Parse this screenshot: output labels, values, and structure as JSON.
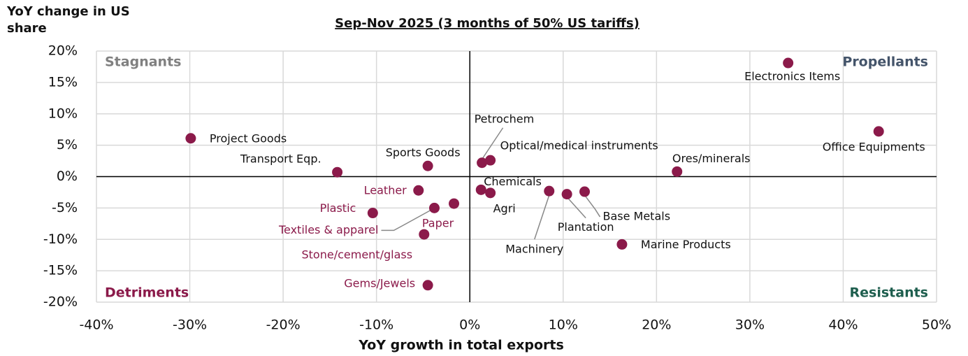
{
  "chart_data": {
    "type": "scatter",
    "title": "Sep-Nov 2025 (3 months of 50% US tariffs)",
    "x_label": "YoY growth in total exports",
    "y_label": "YoY change in US share",
    "color": "#8b1a4a",
    "labels": [
      "Electronics Items",
      "Office Equipments",
      "Project Goods",
      "Transport Eqp.",
      "Sports Goods",
      "Petrochem",
      "Optical/medical instruments",
      "Ores/minerals",
      "Leather",
      "Chemicals",
      "Agri",
      "Machinery",
      "Plantation",
      "Base Metals",
      "Plastic",
      "Textiles & apparel",
      "Paper",
      "Stone/cement/glass",
      "Marine Products",
      "Gems/Jewels"
    ],
    "x": [
      34.1,
      43.8,
      -29.9,
      -14.2,
      -4.5,
      1.3,
      2.2,
      22.2,
      -5.5,
      1.2,
      2.2,
      8.5,
      10.4,
      12.3,
      -10.4,
      -3.8,
      -1.7,
      -4.9,
      16.3,
      -4.5
    ],
    "values": [
      18.1,
      7.2,
      6.1,
      0.7,
      1.7,
      2.2,
      2.6,
      0.8,
      -2.2,
      -2.1,
      -2.6,
      -2.3,
      -2.8,
      -2.4,
      -5.8,
      -5.0,
      -4.3,
      -9.2,
      -10.8,
      -17.3
    ],
    "quadrants": [
      {
        "label": "Propellants",
        "color": "#44546a"
      },
      {
        "label": "Stagnants",
        "color": "#808080"
      },
      {
        "label": "Detriments",
        "color": "#8b1a4a"
      },
      {
        "label": "Resistants",
        "color": "#1e5e4e"
      }
    ],
    "xlim": [
      -40,
      50
    ],
    "ylim": [
      -20,
      20
    ],
    "xticks": [
      {
        "value": -40,
        "label": "-40%"
      },
      {
        "value": -30,
        "label": "-30%"
      },
      {
        "value": -20,
        "label": "-20%"
      },
      {
        "value": -10,
        "label": "-10%"
      },
      {
        "value": 0,
        "label": "0%"
      },
      {
        "value": 10,
        "label": "10%"
      },
      {
        "value": 20,
        "label": "20%"
      },
      {
        "value": 30,
        "label": "30%"
      },
      {
        "value": 40,
        "label": "40%"
      },
      {
        "value": 50,
        "label": "50%"
      }
    ],
    "yticks": [
      {
        "value": -20,
        "label": "-20%"
      },
      {
        "value": -15,
        "label": "-15%"
      },
      {
        "value": -10,
        "label": "-10%"
      },
      {
        "value": -5,
        "label": "-5%"
      },
      {
        "value": 0,
        "label": "0%"
      },
      {
        "value": 5,
        "label": "5%"
      },
      {
        "value": 10,
        "label": "10%"
      },
      {
        "value": 15,
        "label": "15%"
      },
      {
        "value": 20,
        "label": "20%"
      }
    ],
    "grid": true
  }
}
